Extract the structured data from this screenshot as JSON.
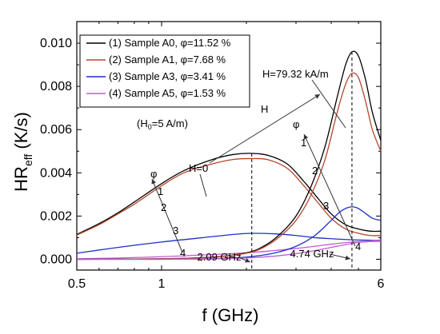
{
  "chart_data": {
    "type": "line",
    "xscale": "log",
    "xlim": [
      0.5,
      6
    ],
    "ylim": [
      -0.0005,
      0.011
    ],
    "xticks": [
      {
        "v": 0.5,
        "label": "0.5"
      },
      {
        "v": 1,
        "label": "1"
      },
      {
        "v": 6,
        "label": "6"
      }
    ],
    "xminor": [
      0.6,
      0.7,
      0.8,
      0.9,
      2,
      3,
      4,
      5
    ],
    "yticks": [
      {
        "v": 0.0,
        "label": "0.000"
      },
      {
        "v": 0.002,
        "label": "0.002"
      },
      {
        "v": 0.004,
        "label": "0.004"
      },
      {
        "v": 0.006,
        "label": "0.006"
      },
      {
        "v": 0.008,
        "label": "0.008"
      },
      {
        "v": 0.01,
        "label": "0.010"
      }
    ],
    "yminor": [
      0.001,
      0.003,
      0.005,
      0.007,
      0.009
    ],
    "xlabel": "f (GHz)",
    "ylabel_main": "HR",
    "ylabel_sub": "eff",
    "ylabel_unit": " (K/s)",
    "legend_position": "top-left",
    "series": [
      {
        "name": "(1) Sample A0, φ=11.52 %",
        "color": "#000000",
        "field": "H=0",
        "x": [
          0.5,
          0.6,
          0.7,
          0.8,
          1.0,
          1.2,
          1.5,
          1.8,
          2.09,
          2.4,
          2.8,
          3.2,
          3.6,
          4.0,
          4.5,
          5.0,
          5.5,
          6.0
        ],
        "y": [
          0.00115,
          0.00165,
          0.00215,
          0.00265,
          0.0035,
          0.0041,
          0.0046,
          0.00485,
          0.0049,
          0.0048,
          0.0044,
          0.0036,
          0.0028,
          0.0021,
          0.0016,
          0.0014,
          0.0013,
          0.0013
        ]
      },
      {
        "name": "(2) Sample A1, φ=7.68 %",
        "color": "#b5472b",
        "field": "H=0",
        "x": [
          0.5,
          0.6,
          0.7,
          0.8,
          1.0,
          1.2,
          1.5,
          1.8,
          2.09,
          2.4,
          2.8,
          3.2,
          3.6,
          4.0,
          4.5,
          5.0,
          5.5,
          6.0
        ],
        "y": [
          0.00112,
          0.0016,
          0.0021,
          0.00255,
          0.0034,
          0.004,
          0.0044,
          0.00462,
          0.00466,
          0.0046,
          0.0042,
          0.0034,
          0.0026,
          0.0019,
          0.0014,
          0.0012,
          0.0011,
          0.0011
        ]
      },
      {
        "name": "(3) Sample A3, φ=3.41 %",
        "color": "#1f2fc8",
        "field": "H=0",
        "x": [
          0.5,
          0.7,
          1.0,
          1.4,
          1.8,
          2.09,
          2.5,
          3.0,
          3.5,
          4.0,
          4.74,
          5.5,
          6.0
        ],
        "y": [
          0.00028,
          0.00055,
          0.0008,
          0.001,
          0.00115,
          0.0012,
          0.00118,
          0.0011,
          0.001,
          0.00095,
          0.0009,
          0.00088,
          0.00088
        ]
      },
      {
        "name": "(4) Sample A5, φ=1.53 %",
        "color": "#c25bd2",
        "field": "H=0",
        "x": [
          0.5,
          0.7,
          1.0,
          1.4,
          2.0,
          2.5,
          3.0,
          3.5,
          4.0,
          4.74,
          5.5,
          6.0
        ],
        "y": [
          2e-05,
          6e-05,
          0.00012,
          0.0002,
          0.0003,
          0.0004,
          0.0005,
          0.0006,
          0.0007,
          0.0008,
          0.00085,
          0.0009
        ]
      },
      {
        "name": "(1) Sample A0, φ=11.52 %",
        "color": "#000000",
        "field": "H=79.32 kA/m",
        "x": [
          0.5,
          1.0,
          1.5,
          2.0,
          2.3,
          2.6,
          3.0,
          3.4,
          3.8,
          4.2,
          4.5,
          4.74,
          5.0,
          5.3,
          5.6,
          6.0
        ],
        "y": [
          0.0,
          2e-05,
          0.0001,
          0.0003,
          0.0006,
          0.0011,
          0.002,
          0.0034,
          0.0052,
          0.0075,
          0.009,
          0.0096,
          0.0094,
          0.0083,
          0.0068,
          0.0055
        ]
      },
      {
        "name": "(2) Sample A1, φ=7.68 %",
        "color": "#b5472b",
        "field": "H=79.32 kA/m",
        "x": [
          0.5,
          1.0,
          1.5,
          2.0,
          2.3,
          2.6,
          3.0,
          3.4,
          3.8,
          4.2,
          4.5,
          4.74,
          5.0,
          5.3,
          5.6,
          6.0
        ],
        "y": [
          0.0,
          2e-05,
          9e-05,
          0.00028,
          0.00055,
          0.001,
          0.0018,
          0.003,
          0.0046,
          0.0068,
          0.0081,
          0.0086,
          0.0084,
          0.0073,
          0.006,
          0.005
        ]
      },
      {
        "name": "(3) Sample A3, φ=3.41 %",
        "color": "#1f2fc8",
        "field": "H=79.32 kA/m",
        "x": [
          0.5,
          1.0,
          1.5,
          2.0,
          2.5,
          3.0,
          3.5,
          4.0,
          4.3,
          4.6,
          4.9,
          5.2,
          5.6,
          6.0
        ],
        "y": [
          0.0,
          0.0,
          3e-05,
          0.0001,
          0.00028,
          0.0006,
          0.0011,
          0.0018,
          0.0022,
          0.0024,
          0.0024,
          0.0022,
          0.0019,
          0.0018
        ]
      },
      {
        "name": "(4) Sample A5, φ=1.53 %",
        "color": "#c25bd2",
        "field": "H=79.32 kA/m",
        "x": [
          0.5,
          1.0,
          1.5,
          2.0,
          2.5,
          3.0,
          3.5,
          4.0,
          4.5,
          5.0,
          5.5,
          6.0
        ],
        "y": [
          0.0,
          0.0,
          2e-05,
          6e-05,
          0.00014,
          0.00026,
          0.0004,
          0.00055,
          0.00068,
          0.00078,
          0.00082,
          0.00083
        ]
      }
    ],
    "vlines": [
      {
        "x": 2.09,
        "label": "2.09 GHz"
      },
      {
        "x": 4.74,
        "label": "4.74 GHz"
      }
    ],
    "annotations": {
      "h0_label": "H=0",
      "h_label": "H=79.32 kA/m",
      "h_arrow": "H",
      "phi": "φ",
      "const_main": "(H",
      "const_sub": "0",
      "const_rest": "=5 A/m)",
      "left_nums": [
        "1",
        "2",
        "3",
        "4"
      ],
      "right_nums": [
        "1",
        "2",
        "3",
        "4"
      ]
    }
  }
}
